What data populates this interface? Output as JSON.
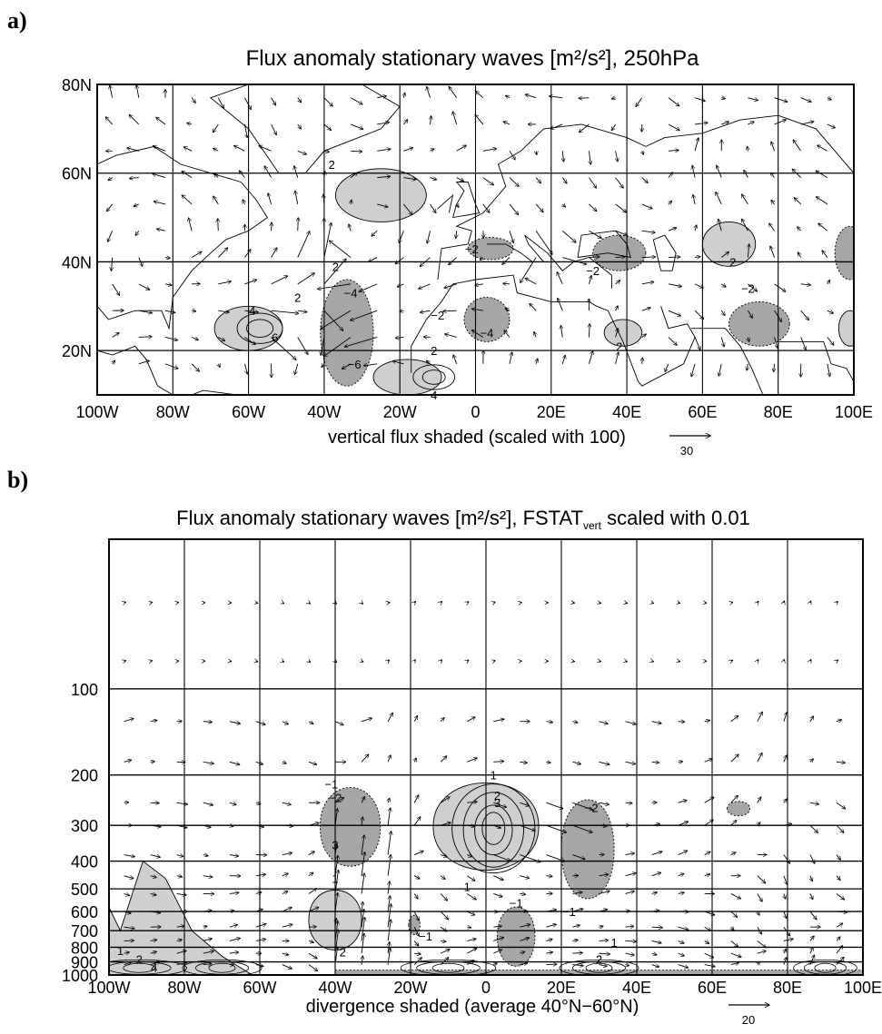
{
  "panels": [
    {
      "label": "a)",
      "title": "Flux anomaly stationary waves [m²/s²], 250hPa",
      "xlabel": "vertical flux shaded (scaled with 100)",
      "ref_vector_label": "30",
      "y_ticks": [
        "80N",
        "60N",
        "40N",
        "20N"
      ],
      "x_ticks": [
        "100W",
        "80W",
        "60W",
        "40W",
        "20W",
        "0",
        "20E",
        "40E",
        "60E",
        "80E",
        "100E"
      ]
    },
    {
      "label": "b)",
      "title": "Flux anomaly stationary waves [m²/s²], FSTAT",
      "title_sub": "vert",
      "title_tail": " scaled with 0.01",
      "xlabel": "divergence shaded (average 40°N−60°N)",
      "ref_vector_label": "20",
      "y_ticks": [
        "100",
        "200",
        "300",
        "400",
        "500",
        "600",
        "700",
        "800",
        "900",
        "1000"
      ],
      "x_ticks": [
        "100W",
        "80W",
        "60W",
        "40W",
        "20W",
        "0",
        "20E",
        "40E",
        "60E",
        "80E",
        "100E"
      ]
    }
  ],
  "chart_data": [
    {
      "type": "vector-field-map",
      "title": "Flux anomaly stationary waves [m²/s²], 250hPa",
      "xlabel": "vertical flux shaded (scaled with 100)",
      "xlim": [
        -100,
        100
      ],
      "ylim": [
        10,
        80
      ],
      "reference_vector": 30,
      "shaded_regions": [
        {
          "lon": -25,
          "lat": 55,
          "rx": 12,
          "ry": 6,
          "sign": "positive"
        },
        {
          "lon": -60,
          "lat": 25,
          "rx": 9,
          "ry": 5,
          "sign": "positive"
        },
        {
          "lon": -18,
          "lat": 14,
          "rx": 9,
          "ry": 4,
          "sign": "positive"
        },
        {
          "lon": -34,
          "lat": 24,
          "rx": 7,
          "ry": 12,
          "sign": "negative"
        },
        {
          "lon": 3,
          "lat": 27,
          "rx": 6,
          "ry": 5,
          "sign": "negative"
        },
        {
          "lon": 4,
          "lat": 43,
          "rx": 6,
          "ry": 2.5,
          "sign": "negative"
        },
        {
          "lon": 39,
          "lat": 24,
          "rx": 5,
          "ry": 3,
          "sign": "positive"
        },
        {
          "lon": 38,
          "lat": 42,
          "rx": 7,
          "ry": 4,
          "sign": "negative"
        },
        {
          "lon": 67,
          "lat": 44,
          "rx": 7,
          "ry": 5,
          "sign": "positive"
        },
        {
          "lon": 75,
          "lat": 26,
          "rx": 8,
          "ry": 5,
          "sign": "negative"
        },
        {
          "lon": 99,
          "lat": 42,
          "rx": 4,
          "ry": 6,
          "sign": "negative"
        },
        {
          "lon": 99,
          "lat": 25,
          "rx": 3,
          "ry": 4,
          "sign": "positive"
        }
      ],
      "contour_labels": [
        {
          "lon": -38,
          "lat": 62,
          "text": "2"
        },
        {
          "lon": -37,
          "lat": 39,
          "text": "2"
        },
        {
          "lon": -47,
          "lat": 32,
          "text": "2"
        },
        {
          "lon": -59,
          "lat": 29,
          "text": "4"
        },
        {
          "lon": -53,
          "lat": 23,
          "text": "6"
        },
        {
          "lon": -33,
          "lat": 33,
          "text": "−4"
        },
        {
          "lon": -32,
          "lat": 17,
          "text": "−6"
        },
        {
          "lon": -10,
          "lat": 28,
          "text": "−2"
        },
        {
          "lon": 3,
          "lat": 24,
          "text": "−4"
        },
        {
          "lon": -1,
          "lat": 43,
          "text": "−2"
        },
        {
          "lon": -11,
          "lat": 10,
          "text": "4"
        },
        {
          "lon": -11,
          "lat": 20,
          "text": "2"
        },
        {
          "lon": 31,
          "lat": 38,
          "text": "−2"
        },
        {
          "lon": 38,
          "lat": 21,
          "text": "2"
        },
        {
          "lon": 68,
          "lat": 40,
          "text": "2"
        },
        {
          "lon": 72,
          "lat": 34,
          "text": "−2"
        }
      ]
    },
    {
      "type": "vector-field-cross-section",
      "title": "Flux anomaly stationary waves [m²/s²], FSTATvert scaled with 0.01",
      "xlabel": "divergence shaded (average 40°N−60°N)",
      "xlim": [
        -100,
        100
      ],
      "ylim": [
        1000,
        30
      ],
      "yscale": "log",
      "reference_vector": 20,
      "shaded_regions": [
        {
          "lon": -36,
          "p": 300,
          "rx": 8,
          "sign": "negative"
        },
        {
          "lon": 0,
          "p": 300,
          "rx": 14,
          "sign": "positive"
        },
        {
          "lon": 27,
          "p": 350,
          "rx": 7,
          "sign": "negative"
        },
        {
          "lon": -40,
          "p": 700,
          "rx": 7,
          "sign": "positive"
        },
        {
          "lon": 8,
          "p": 750,
          "rx": 5,
          "sign": "negative"
        },
        {
          "lon": -85,
          "p": 750,
          "rx": 18,
          "sign": "positive"
        },
        {
          "lon": 67,
          "p": 260,
          "rx": 3,
          "sign": "negative"
        }
      ],
      "contour_labels": [
        {
          "lon": -41,
          "p": 215,
          "text": "−1"
        },
        {
          "lon": -40,
          "p": 240,
          "text": "−2"
        },
        {
          "lon": -40,
          "p": 350,
          "text": "3"
        },
        {
          "lon": 2,
          "p": 200,
          "text": "1"
        },
        {
          "lon": 3,
          "p": 235,
          "text": "2"
        },
        {
          "lon": 3,
          "p": 250,
          "text": "3"
        },
        {
          "lon": 28,
          "p": 260,
          "text": "−2"
        },
        {
          "lon": -40,
          "p": 460,
          "text": "1"
        },
        {
          "lon": -5,
          "p": 490,
          "text": "1"
        },
        {
          "lon": 8,
          "p": 560,
          "text": "−1"
        },
        {
          "lon": 22,
          "p": 600,
          "text": "−1"
        },
        {
          "lon": -16,
          "p": 730,
          "text": "−1"
        },
        {
          "lon": -38,
          "p": 830,
          "text": "2"
        },
        {
          "lon": 30,
          "p": 880,
          "text": "2"
        },
        {
          "lon": 34,
          "p": 770,
          "text": "1"
        },
        {
          "lon": -97,
          "p": 820,
          "text": "1"
        },
        {
          "lon": -92,
          "p": 880,
          "text": "2"
        },
        {
          "lon": -88,
          "p": 940,
          "text": "4"
        }
      ]
    }
  ],
  "colors": {
    "light_shade": "#cfcfcf",
    "dark_shade": "#a6a6a6",
    "line": "#000000"
  }
}
